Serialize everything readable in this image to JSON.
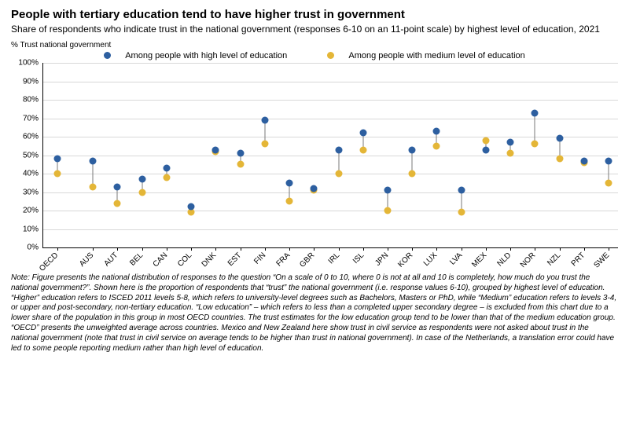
{
  "title": "People with tertiary education tend to have higher trust in government",
  "subtitle": "Share of respondents who indicate trust in the national government (responses 6-10 on an 11-point scale) by highest level of education, 2021",
  "y_axis_title": "% Trust national government",
  "legend": {
    "high": {
      "label": "Among people with high level of education",
      "color": "#2d5fa0"
    },
    "medium": {
      "label": "Among people with medium level of education",
      "color": "#e4b637"
    }
  },
  "chart": {
    "type": "dot-plot",
    "ylim": [
      0,
      100
    ],
    "ytick_step": 10,
    "ytick_suffix": "%",
    "grid_color": "#d8d8d8",
    "axis_color": "#000000",
    "connector_color": "#7a7a7a",
    "background_color": "#ffffff",
    "gap_after_first": true,
    "label_fontsize": 10,
    "categories": [
      "OECD",
      "AUS",
      "AUT",
      "BEL",
      "CAN",
      "COL",
      "DNK",
      "EST",
      "FIN",
      "FRA",
      "GBR",
      "IRL",
      "ISL",
      "JPN",
      "KOR",
      "LUX",
      "LVA",
      "MEX",
      "NLD",
      "NOR",
      "NZL",
      "PRT",
      "SWE"
    ],
    "series": {
      "high": [
        48,
        47,
        33,
        37,
        43,
        22,
        53,
        51,
        69,
        35,
        32,
        53,
        62,
        31,
        53,
        63,
        31,
        53,
        57,
        73,
        59,
        47,
        47
      ],
      "medium": [
        40,
        33,
        24,
        30,
        38,
        19,
        52,
        45,
        56,
        25,
        31,
        40,
        53,
        20,
        40,
        55,
        19,
        58,
        51,
        56,
        48,
        46,
        35
      ]
    }
  },
  "note": "Note: Figure presents the national distribution of responses to the question “On a scale of 0 to 10, where 0 is not at all and 10 is completely, how much do you trust the national government?”. Shown here is the proportion of respondents that “trust” the national government (i.e. response values 6-10), grouped by highest level of education. “Higher” education refers to ISCED 2011 levels 5-8, which refers to university-level degrees such as Bachelors, Masters or PhD, while “Medium” education refers to levels 3-4, or upper and post-secondary, non-tertiary education. “Low education” – which refers to less than a completed upper secondary degree – is excluded from this chart due to a lower share of the population in this group in most OECD countries. The trust estimates for the low education group tend to be lower than that of the medium education group. “OECD” presents the unweighted average across countries. Mexico and New Zealand here show trust in civil service as respondents were not asked about trust in the national government (note that trust in civil service on average tends to be higher than trust in national government). In case of the Netherlands, a translation error could have led to some people reporting medium rather than high level of education."
}
